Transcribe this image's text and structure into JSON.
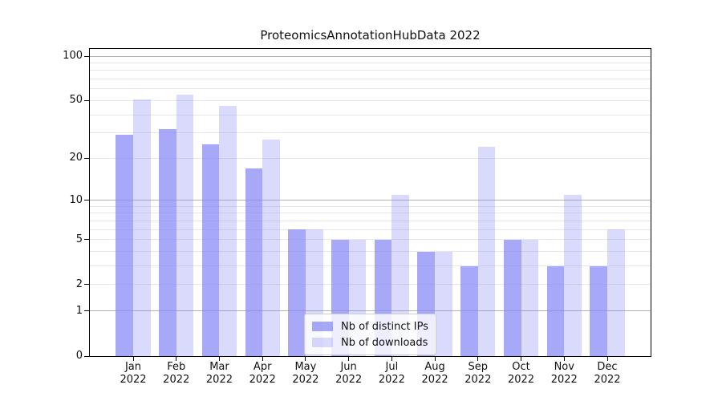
{
  "title": "ProteomicsAnnotationHubData 2022",
  "colors": {
    "bar_base": "#8686f6",
    "ips_solid": "#a9a9f8",
    "downloads_solid": "#dbdbfa",
    "grid_major": "#b2b2b2",
    "grid_minor": "#e7e7e7",
    "axis": "#000000",
    "background": "#ffffff"
  },
  "chart_data": {
    "type": "bar",
    "title": "ProteomicsAnnotationHubData 2022",
    "categories": [
      "Jan 2022",
      "Feb 2022",
      "Mar 2022",
      "Apr 2022",
      "May 2022",
      "Jun 2022",
      "Jul 2022",
      "Aug 2022",
      "Sep 2022",
      "Oct 2022",
      "Nov 2022",
      "Dec 2022"
    ],
    "series": [
      {
        "key": "ips",
        "name": "Nb of distinct IPs",
        "alpha": 0.72,
        "values": [
          29,
          32,
          25,
          17,
          6,
          5,
          5,
          4,
          3,
          5,
          3,
          3
        ]
      },
      {
        "key": "downloads",
        "name": "Nb of downloads",
        "alpha": 0.3,
        "values": [
          51,
          55,
          46,
          27,
          6,
          5,
          11,
          4,
          24,
          5,
          11,
          6
        ]
      }
    ],
    "xlabel": "",
    "ylabel": "",
    "y_scale": "log1p",
    "ylim": [
      0,
      112
    ],
    "y_ticks": [
      0,
      1,
      2,
      5,
      10,
      20,
      50,
      100
    ],
    "grid_major_values": [
      1,
      10,
      100
    ],
    "grid_minor_values": [
      2,
      3,
      4,
      5,
      6,
      7,
      8,
      9,
      20,
      30,
      40,
      50,
      60,
      70,
      80,
      90
    ],
    "grid": "on",
    "legend_position": "lower-center-inside"
  }
}
